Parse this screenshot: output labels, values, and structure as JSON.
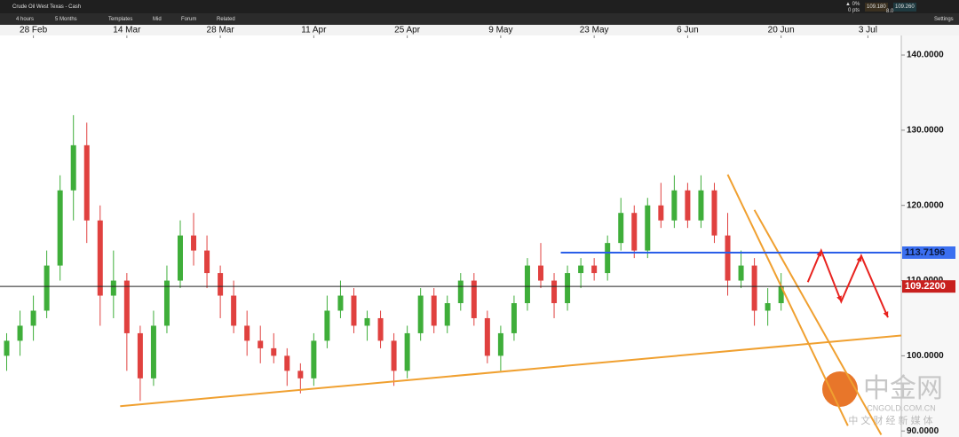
{
  "toolbar": {
    "instrument": "Crude Oil West Texas - Cash",
    "interval": "4 hours",
    "range": "5 Months",
    "templates": "Templates",
    "mid": "Mid",
    "forum": "Forum",
    "related": "Related",
    "settings": "Settings",
    "change_pct": "▲ 0%",
    "change_pts": "0 pts",
    "bid": "109.180",
    "ask": "109.260",
    "spread": "8.0"
  },
  "watermark": {
    "brand": "中金网",
    "site": "CNGOLD.COM.CN",
    "tagline": "中 文 财 经 新 媒 体"
  },
  "chart_data": {
    "type": "candlestick",
    "x": [
      "24 Feb",
      "26 Feb",
      "28 Feb",
      "2 Mar",
      "4 Mar",
      "6 Mar",
      "8 Mar",
      "10 Mar",
      "12 Mar",
      "14 Mar",
      "16 Mar",
      "18 Mar",
      "20 Mar",
      "22 Mar",
      "24 Mar",
      "26 Mar",
      "28 Mar",
      "30 Mar",
      "1 Apr",
      "3 Apr",
      "5 Apr",
      "7 Apr",
      "9 Apr",
      "11 Apr",
      "13 Apr",
      "15 Apr",
      "17 Apr",
      "19 Apr",
      "21 Apr",
      "23 Apr",
      "25 Apr",
      "27 Apr",
      "29 Apr",
      "1 May",
      "3 May",
      "5 May",
      "7 May",
      "9 May",
      "11 May",
      "13 May",
      "15 May",
      "17 May",
      "19 May",
      "21 May",
      "23 May",
      "25 May",
      "27 May",
      "29 May",
      "31 May",
      "2 Jun",
      "4 Jun",
      "6 Jun",
      "8 Jun",
      "10 Jun",
      "12 Jun",
      "14 Jun",
      "16 Jun",
      "18 Jun",
      "20 Jun"
    ],
    "open": [
      100,
      102,
      104,
      106,
      112,
      122,
      128,
      118,
      108,
      110,
      103,
      97,
      104,
      110,
      116,
      114,
      111,
      108,
      104,
      102,
      101,
      100,
      98,
      97,
      102,
      106,
      108,
      104,
      105,
      102,
      98,
      103,
      108,
      104,
      107,
      110,
      105,
      100,
      103,
      107,
      112,
      110,
      107,
      111,
      112,
      111,
      115,
      119,
      114,
      120,
      118,
      122,
      118,
      122,
      116,
      110,
      112,
      106,
      107
    ],
    "high": [
      103,
      106,
      108,
      114,
      124,
      132,
      131,
      120,
      114,
      111,
      104,
      106,
      112,
      118,
      119,
      116,
      112,
      110,
      106,
      104,
      103,
      101,
      99,
      103,
      108,
      110,
      109,
      106,
      106,
      103,
      104,
      109,
      109,
      108,
      111,
      111,
      106,
      104,
      108,
      113,
      115,
      111,
      112,
      113,
      113,
      116,
      121,
      120,
      121,
      123,
      124,
      123,
      124,
      123,
      119,
      114,
      113,
      109,
      111
    ],
    "low": [
      98,
      100,
      102,
      105,
      110,
      118,
      115,
      104,
      105,
      98,
      94,
      96,
      103,
      109,
      112,
      109,
      105,
      103,
      100,
      99,
      99,
      96,
      95,
      96,
      101,
      105,
      103,
      102,
      101,
      96,
      97,
      102,
      103,
      103,
      106,
      104,
      99,
      98,
      102,
      106,
      109,
      105,
      106,
      109,
      110,
      110,
      114,
      113,
      113,
      117,
      117,
      117,
      117,
      115,
      108,
      109,
      104,
      104,
      106
    ],
    "close": [
      102,
      104,
      106,
      112,
      122,
      128,
      118,
      108,
      110,
      103,
      97,
      104,
      110,
      116,
      114,
      111,
      108,
      104,
      102,
      101,
      100,
      98,
      97,
      102,
      106,
      108,
      104,
      105,
      102,
      98,
      103,
      108,
      104,
      107,
      110,
      105,
      100,
      103,
      107,
      112,
      110,
      107,
      111,
      112,
      111,
      115,
      119,
      114,
      120,
      118,
      122,
      118,
      122,
      116,
      110,
      112,
      106,
      107,
      109.22
    ],
    "up_color": "#3fae3a",
    "down_color": "#e0413f",
    "xlim": [
      "23 Feb",
      "8 Jul"
    ],
    "xticks": [
      "28 Feb",
      "14 Mar",
      "28 Mar",
      "11 Apr",
      "25 Apr",
      "9 May",
      "23 May",
      "6 Jun",
      "20 Jun",
      "3 Jul"
    ],
    "ylim": [
      89.2,
      142.6
    ],
    "yticks": [
      {
        "value": 90,
        "label": "90.0000"
      },
      {
        "value": 100,
        "label": "100.0000"
      },
      {
        "value": 110,
        "label": "110.0000"
      },
      {
        "value": 120,
        "label": "120.0000"
      },
      {
        "value": 130,
        "label": "130.0000"
      },
      {
        "value": 140,
        "label": "140.0000"
      }
    ],
    "hlines": [
      {
        "value": 113.7196,
        "label": "113.7196",
        "color": "#2a5ee8",
        "label_bg": "#3b6ff0",
        "label_fg": "#0b1a40",
        "from": "18 May"
      },
      {
        "value": 109.22,
        "label": "109.2200",
        "color": "#222222",
        "label_bg": "#c8201e",
        "label_fg": "#ffffff",
        "from": "23 Feb"
      }
    ],
    "trendlines": [
      {
        "color": "#f0a030",
        "x": [
          "13 Mar",
          "8 Jul"
        ],
        "values": [
          93.3,
          102.7
        ]
      },
      {
        "color": "#f0a030",
        "x": [
          "12 Jun",
          "30 Jun"
        ],
        "values": [
          124.1,
          90.7
        ]
      },
      {
        "color": "#f0a030",
        "x": [
          "16 Jun",
          "5 Jul"
        ],
        "values": [
          119.4,
          89.5
        ]
      }
    ],
    "projection": {
      "color": "#e8221e",
      "x": [
        "24 Jun",
        "26 Jun",
        "29 Jun",
        "2 Jul",
        "6 Jul"
      ],
      "values": [
        109.8,
        114.0,
        107.2,
        113.3,
        105.1
      ]
    }
  }
}
